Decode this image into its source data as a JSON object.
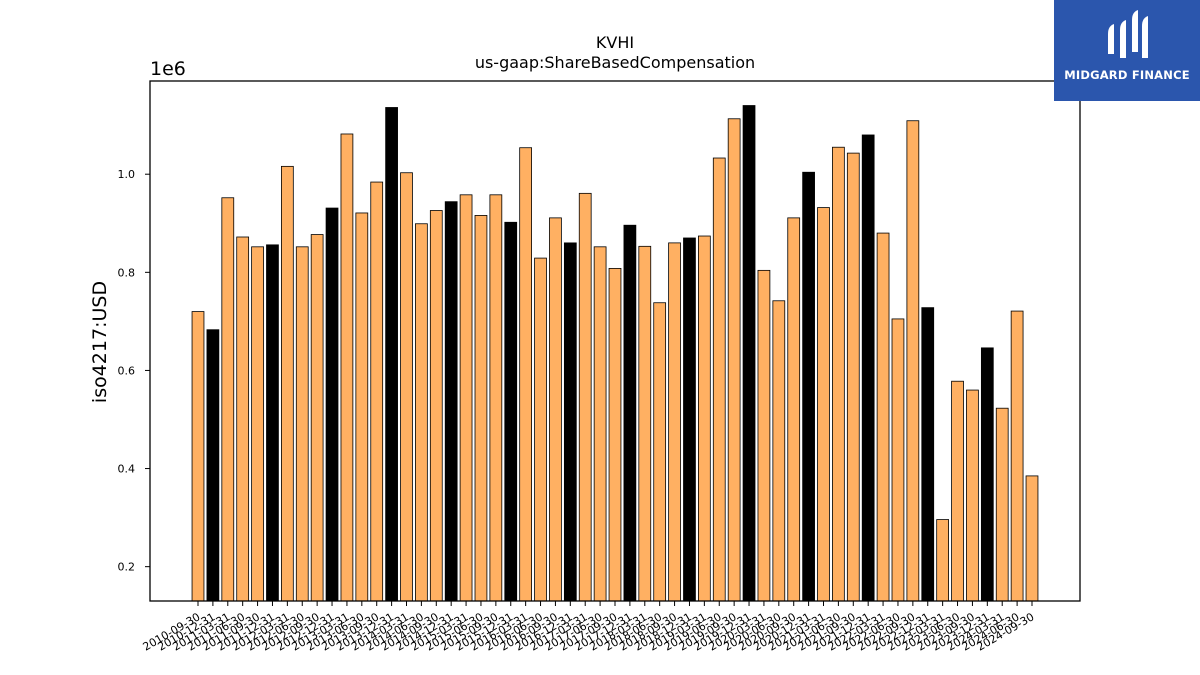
{
  "chart_data": {
    "type": "bar",
    "title": "KVHI",
    "subtitle": "us-gaap:ShareBasedCompensation",
    "ylabel": "iso4217:USD",
    "xlabel": "",
    "y_scale_label": "1e6",
    "ylim": [
      0.13,
      1.19
    ],
    "yticks": [
      "0.2",
      "0.4",
      "0.6",
      "0.8",
      "1.0"
    ],
    "grid": false,
    "colors": {
      "quarter": "#ffb062",
      "annual": "#000000",
      "edge": "#000000"
    },
    "categories": [
      "2010-09-30",
      "2010-12-31",
      "2011-03-31",
      "2011-06-30",
      "2011-09-30",
      "2011-12-31",
      "2012-03-31",
      "2012-06-30",
      "2012-09-30",
      "2012-12-31",
      "2013-03-31",
      "2013-06-30",
      "2013-09-30",
      "2013-12-31",
      "2014-03-31",
      "2014-06-30",
      "2014-09-30",
      "2014-12-31",
      "2015-03-31",
      "2015-06-30",
      "2015-09-30",
      "2015-12-31",
      "2016-03-31",
      "2016-06-30",
      "2016-09-30",
      "2016-12-31",
      "2017-03-31",
      "2017-06-30",
      "2017-09-30",
      "2017-12-31",
      "2018-03-31",
      "2018-06-30",
      "2018-09-30",
      "2018-12-31",
      "2019-03-31",
      "2019-06-30",
      "2019-09-30",
      "2019-12-31",
      "2020-03-31",
      "2020-06-30",
      "2020-09-30",
      "2020-12-31",
      "2021-03-31",
      "2021-06-30",
      "2021-09-30",
      "2021-12-31",
      "2022-03-31",
      "2022-06-30",
      "2022-09-30",
      "2022-12-31",
      "2023-03-31",
      "2023-06-30",
      "2023-09-30",
      "2023-12-31",
      "2024-03-31",
      "2024-06-30",
      "2024-09-30"
    ],
    "values": [
      0.72,
      0.683,
      0.952,
      0.872,
      0.852,
      0.856,
      1.016,
      0.852,
      0.877,
      0.931,
      1.082,
      0.921,
      0.984,
      1.136,
      1.003,
      0.899,
      0.926,
      0.944,
      0.958,
      0.916,
      0.958,
      0.902,
      1.054,
      0.829,
      0.911,
      0.86,
      0.961,
      0.852,
      0.808,
      0.896,
      0.853,
      0.738,
      0.86,
      0.87,
      0.874,
      1.033,
      1.113,
      1.14,
      0.804,
      0.742,
      0.911,
      1.004,
      0.932,
      1.055,
      1.043,
      1.08,
      0.88,
      0.705,
      1.109,
      0.728,
      0.296,
      0.578,
      0.56,
      0.646,
      0.523,
      0.721,
      0.385
    ],
    "bar_kind": [
      "q",
      "a",
      "q",
      "q",
      "q",
      "a",
      "q",
      "q",
      "q",
      "a",
      "q",
      "q",
      "q",
      "a",
      "q",
      "q",
      "q",
      "a",
      "q",
      "q",
      "q",
      "a",
      "q",
      "q",
      "q",
      "a",
      "q",
      "q",
      "q",
      "a",
      "q",
      "q",
      "q",
      "a",
      "q",
      "q",
      "q",
      "a",
      "q",
      "q",
      "q",
      "a",
      "q",
      "q",
      "q",
      "a",
      "q",
      "q",
      "q",
      "a",
      "q",
      "q",
      "q",
      "a",
      "q",
      "q",
      "q"
    ]
  },
  "logo": {
    "text": "MIDGARD FINANCE"
  }
}
